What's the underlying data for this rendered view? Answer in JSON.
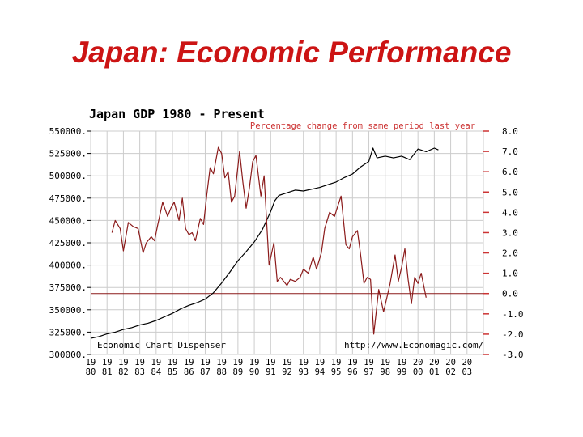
{
  "slide": {
    "title": "Japan: Economic Performance"
  },
  "chart_data": {
    "type": "line",
    "title": "Japan GDP 1980 - Present",
    "right_axis_label": "Percentage change from same period last year",
    "footer_left": "Economic Chart Dispenser",
    "footer_right": "http://www.Economagic.com/",
    "x_range": [
      1980,
      2004
    ],
    "x_tick_labels": [
      [
        "19",
        "80"
      ],
      [
        "19",
        "81"
      ],
      [
        "19",
        "82"
      ],
      [
        "19",
        "83"
      ],
      [
        "19",
        "84"
      ],
      [
        "19",
        "85"
      ],
      [
        "19",
        "86"
      ],
      [
        "19",
        "87"
      ],
      [
        "19",
        "88"
      ],
      [
        "19",
        "89"
      ],
      [
        "19",
        "90"
      ],
      [
        "19",
        "91"
      ],
      [
        "19",
        "92"
      ],
      [
        "19",
        "93"
      ],
      [
        "19",
        "94"
      ],
      [
        "19",
        "95"
      ],
      [
        "19",
        "96"
      ],
      [
        "19",
        "97"
      ],
      [
        "19",
        "98"
      ],
      [
        "19",
        "99"
      ],
      [
        "20",
        "00"
      ],
      [
        "20",
        "01"
      ],
      [
        "20",
        "02"
      ],
      [
        "20",
        "03"
      ]
    ],
    "left_axis": {
      "range": [
        300000,
        550000
      ],
      "tick_values": [
        550000,
        525000,
        500000,
        475000,
        450000,
        425000,
        400000,
        375000,
        350000,
        325000,
        300000
      ],
      "tick_labels": [
        "550000.",
        "525000.",
        "500000.",
        "475000.",
        "450000.",
        "425000.",
        "400000.",
        "375000.",
        "350000.",
        "325000.",
        "300000."
      ]
    },
    "right_axis": {
      "range": [
        -3.0,
        8.0
      ],
      "tick_values": [
        8.0,
        7.0,
        6.0,
        5.0,
        4.0,
        3.0,
        2.0,
        1.0,
        0.0,
        -1.0,
        -2.0,
        -3.0
      ],
      "tick_labels": [
        "8.0",
        "7.0",
        "6.0",
        "5.0",
        "4.0",
        "3.0",
        "2.0",
        "1.0",
        "0.0",
        "-1.0",
        "-2.0",
        "-3.0"
      ]
    },
    "grid": true,
    "zero_line": 0.0,
    "series": [
      {
        "axis": "left",
        "color": "#000000",
        "points": [
          [
            1980.0,
            318000
          ],
          [
            1980.5,
            320000
          ],
          [
            1981.0,
            323000
          ],
          [
            1981.5,
            325000
          ],
          [
            1982.0,
            328000
          ],
          [
            1982.5,
            330000
          ],
          [
            1983.0,
            333000
          ],
          [
            1983.5,
            335000
          ],
          [
            1984.0,
            338000
          ],
          [
            1984.5,
            342000
          ],
          [
            1985.0,
            346000
          ],
          [
            1985.5,
            351000
          ],
          [
            1986.0,
            355000
          ],
          [
            1986.5,
            358000
          ],
          [
            1987.0,
            362000
          ],
          [
            1987.5,
            369000
          ],
          [
            1988.0,
            380000
          ],
          [
            1988.5,
            392000
          ],
          [
            1989.0,
            405000
          ],
          [
            1989.5,
            415000
          ],
          [
            1990.0,
            426000
          ],
          [
            1990.5,
            440000
          ],
          [
            1991.0,
            460000
          ],
          [
            1991.25,
            472000
          ],
          [
            1991.5,
            478000
          ],
          [
            1992.0,
            481000
          ],
          [
            1992.5,
            484000
          ],
          [
            1993.0,
            483000
          ],
          [
            1993.5,
            485000
          ],
          [
            1994.0,
            487000
          ],
          [
            1994.5,
            490000
          ],
          [
            1995.0,
            493000
          ],
          [
            1995.5,
            498000
          ],
          [
            1996.0,
            502000
          ],
          [
            1996.5,
            510000
          ],
          [
            1997.0,
            516000
          ],
          [
            1997.25,
            531000
          ],
          [
            1997.5,
            520000
          ],
          [
            1998.0,
            522000
          ],
          [
            1998.5,
            520000
          ],
          [
            1999.0,
            522000
          ],
          [
            1999.5,
            518000
          ],
          [
            2000.0,
            530000
          ],
          [
            2000.5,
            527000
          ],
          [
            2001.0,
            531000
          ],
          [
            2001.25,
            529000
          ]
        ]
      },
      {
        "axis": "right",
        "color": "#8b1a1a",
        "points": [
          [
            1981.3,
            3.0
          ],
          [
            1981.5,
            3.6
          ],
          [
            1981.8,
            3.2
          ],
          [
            1982.0,
            2.1
          ],
          [
            1982.3,
            3.5
          ],
          [
            1982.6,
            3.3
          ],
          [
            1982.9,
            3.2
          ],
          [
            1983.2,
            2.0
          ],
          [
            1983.4,
            2.5
          ],
          [
            1983.7,
            2.8
          ],
          [
            1983.9,
            2.6
          ],
          [
            1984.1,
            3.4
          ],
          [
            1984.4,
            4.5
          ],
          [
            1984.7,
            3.8
          ],
          [
            1984.9,
            4.2
          ],
          [
            1985.1,
            4.5
          ],
          [
            1985.4,
            3.6
          ],
          [
            1985.6,
            4.7
          ],
          [
            1985.8,
            3.2
          ],
          [
            1986.0,
            2.9
          ],
          [
            1986.2,
            3.0
          ],
          [
            1986.4,
            2.6
          ],
          [
            1986.7,
            3.7
          ],
          [
            1986.9,
            3.4
          ],
          [
            1987.1,
            4.9
          ],
          [
            1987.3,
            6.2
          ],
          [
            1987.5,
            5.9
          ],
          [
            1987.8,
            7.2
          ],
          [
            1988.0,
            6.9
          ],
          [
            1988.2,
            5.7
          ],
          [
            1988.4,
            6.0
          ],
          [
            1988.6,
            4.5
          ],
          [
            1988.8,
            4.8
          ],
          [
            1989.1,
            7.0
          ],
          [
            1989.3,
            5.5
          ],
          [
            1989.5,
            4.2
          ],
          [
            1989.7,
            5.2
          ],
          [
            1989.9,
            6.5
          ],
          [
            1990.1,
            6.8
          ],
          [
            1990.4,
            4.8
          ],
          [
            1990.6,
            5.8
          ],
          [
            1990.9,
            1.4
          ],
          [
            1991.2,
            2.5
          ],
          [
            1991.4,
            0.6
          ],
          [
            1991.6,
            0.8
          ],
          [
            1991.8,
            0.6
          ],
          [
            1992.0,
            0.4
          ],
          [
            1992.2,
            0.7
          ],
          [
            1992.5,
            0.6
          ],
          [
            1992.8,
            0.8
          ],
          [
            1993.0,
            1.2
          ],
          [
            1993.3,
            1.0
          ],
          [
            1993.6,
            1.8
          ],
          [
            1993.8,
            1.2
          ],
          [
            1994.1,
            2.0
          ],
          [
            1994.3,
            3.2
          ],
          [
            1994.6,
            4.0
          ],
          [
            1994.9,
            3.8
          ],
          [
            1995.1,
            4.3
          ],
          [
            1995.3,
            4.8
          ],
          [
            1995.6,
            2.4
          ],
          [
            1995.8,
            2.2
          ],
          [
            1996.0,
            2.8
          ],
          [
            1996.3,
            3.1
          ],
          [
            1996.5,
            1.9
          ],
          [
            1996.7,
            0.5
          ],
          [
            1996.9,
            0.8
          ],
          [
            1997.1,
            0.7
          ],
          [
            1997.3,
            -2.0
          ],
          [
            1997.6,
            0.2
          ],
          [
            1997.9,
            -0.9
          ],
          [
            1998.1,
            -0.2
          ],
          [
            1998.3,
            0.5
          ],
          [
            1998.6,
            1.9
          ],
          [
            1998.8,
            0.6
          ],
          [
            1999.0,
            1.3
          ],
          [
            1999.2,
            2.2
          ],
          [
            1999.4,
            0.7
          ],
          [
            1999.6,
            -0.5
          ],
          [
            1999.8,
            0.8
          ],
          [
            2000.0,
            0.5
          ],
          [
            2000.2,
            1.0
          ],
          [
            2000.5,
            -0.2
          ]
        ]
      }
    ]
  }
}
